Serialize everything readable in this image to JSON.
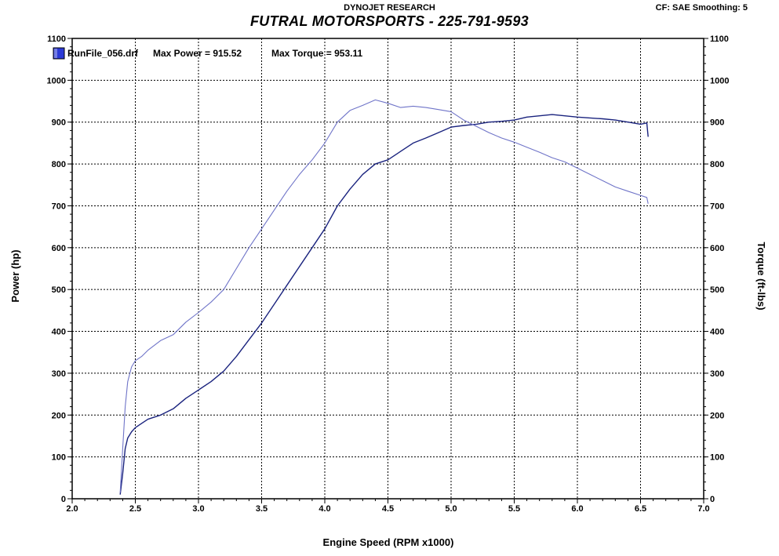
{
  "header": {
    "subtitle": "DYNOJET RESEARCH",
    "title": "FUTRAL MOTORSPORTS - 225-791-9593",
    "cf_info": "CF: SAE  Smoothing: 5"
  },
  "legend": {
    "run_label": "RunFile_056.drf",
    "max_power": "Max Power = 915.52",
    "max_torque": "Max Torque = 953.11"
  },
  "colors": {
    "power": "#1a237e",
    "torque": "#6f74c8",
    "legend_swatch": "#2b39d6"
  },
  "chart_data": {
    "type": "line",
    "xlabel": "Engine Speed (RPM x1000)",
    "ylabel": "Power (hp)",
    "y2label": "Torque (ft-lbs)",
    "xlim": [
      2.0,
      7.0
    ],
    "ylim": [
      0,
      1100
    ],
    "xticks": [
      "2.0",
      "2.5",
      "3.0",
      "3.5",
      "4.0",
      "4.5",
      "5.0",
      "5.5",
      "6.0",
      "6.5",
      "7.0"
    ],
    "yticks": [
      "0",
      "100",
      "200",
      "300",
      "400",
      "500",
      "600",
      "700",
      "800",
      "900",
      "1000",
      "1100"
    ],
    "grid": true,
    "series": [
      {
        "key": "power",
        "x": [
          2.38,
          2.4,
          2.42,
          2.44,
          2.47,
          2.5,
          2.55,
          2.6,
          2.7,
          2.8,
          2.9,
          3.0,
          3.1,
          3.2,
          3.3,
          3.4,
          3.5,
          3.6,
          3.7,
          3.8,
          3.9,
          4.0,
          4.1,
          4.2,
          4.3,
          4.4,
          4.5,
          4.6,
          4.7,
          4.8,
          4.9,
          5.0,
          5.1,
          5.2,
          5.3,
          5.4,
          5.5,
          5.6,
          5.7,
          5.8,
          5.9,
          6.0,
          6.1,
          6.2,
          6.3,
          6.4,
          6.5,
          6.55,
          6.56
        ],
        "y": [
          10,
          60,
          120,
          145,
          160,
          170,
          180,
          190,
          200,
          215,
          240,
          260,
          280,
          305,
          340,
          380,
          420,
          465,
          510,
          555,
          600,
          645,
          700,
          740,
          775,
          800,
          810,
          830,
          850,
          862,
          875,
          888,
          892,
          895,
          900,
          902,
          905,
          912,
          915,
          918,
          915,
          912,
          910,
          908,
          905,
          900,
          895,
          898,
          865
        ]
      },
      {
        "key": "torque",
        "x": [
          2.38,
          2.4,
          2.42,
          2.44,
          2.47,
          2.5,
          2.55,
          2.6,
          2.7,
          2.8,
          2.9,
          3.0,
          3.1,
          3.2,
          3.3,
          3.4,
          3.5,
          3.6,
          3.7,
          3.8,
          3.9,
          4.0,
          4.1,
          4.2,
          4.3,
          4.4,
          4.5,
          4.6,
          4.7,
          4.8,
          4.9,
          5.0,
          5.1,
          5.2,
          5.3,
          5.4,
          5.5,
          5.6,
          5.7,
          5.8,
          5.9,
          6.0,
          6.1,
          6.2,
          6.3,
          6.4,
          6.5,
          6.55,
          6.56
        ],
        "y": [
          15,
          120,
          220,
          280,
          315,
          330,
          340,
          355,
          378,
          392,
          422,
          445,
          470,
          500,
          550,
          600,
          645,
          690,
          735,
          775,
          810,
          850,
          900,
          928,
          940,
          953,
          945,
          935,
          938,
          935,
          930,
          925,
          905,
          890,
          875,
          862,
          852,
          840,
          828,
          815,
          805,
          790,
          775,
          760,
          745,
          735,
          725,
          720,
          705
        ]
      }
    ]
  }
}
